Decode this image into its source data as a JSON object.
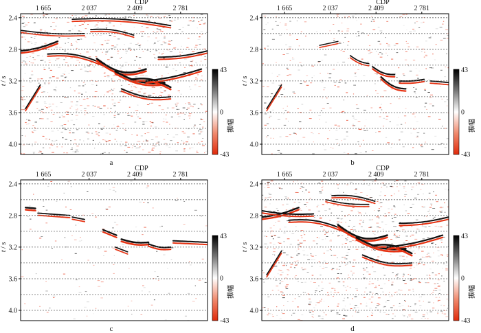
{
  "figure": {
    "colors": {
      "positive": "#111111",
      "negative": "#e63212",
      "weak": "#b8b8b8",
      "grid": "#666666",
      "frame": "#000000"
    },
    "colorbar": {
      "max_label": "43",
      "zero_label": "0",
      "min_label": "-43",
      "title": "振幅",
      "range": [
        -43,
        43
      ]
    },
    "panels": [
      {
        "id": "a",
        "label": "a",
        "density": "high",
        "chart_data": {
          "type": "heatmap",
          "title": "",
          "xlabel": "CDP",
          "ylabel_italic": "t",
          "ylabel_unit": " / s",
          "x_ticks": [
            "1 665",
            "2 037",
            "2 409",
            "2 781"
          ],
          "y_ticks": [
            "2.4",
            "2.8",
            "3.2",
            "3.6",
            "4.0"
          ],
          "x_tick_values": [
            1665,
            2037,
            2409,
            2781
          ],
          "y_tick_values": [
            2.4,
            2.8,
            3.2,
            3.6,
            4.0
          ],
          "xlim": [
            1480,
            3000
          ],
          "ylim": [
            2.35,
            4.13
          ],
          "grid_times": [
            2.4,
            2.6,
            2.8,
            3.0,
            3.2,
            3.4,
            3.6,
            3.8,
            4.0
          ],
          "value_range": [
            -43,
            43
          ]
        }
      },
      {
        "id": "b",
        "label": "b",
        "density": "medium",
        "chart_data": {
          "type": "heatmap",
          "title": "",
          "xlabel": "CDP",
          "ylabel_italic": "t",
          "ylabel_unit": " / s",
          "x_ticks": [
            "1 665",
            "2 037",
            "2 409",
            "2 781"
          ],
          "y_ticks": [
            "2.4",
            "2.8",
            "3.2",
            "3.6",
            "4.0"
          ],
          "x_tick_values": [
            1665,
            2037,
            2409,
            2781
          ],
          "y_tick_values": [
            2.4,
            2.8,
            3.2,
            3.6,
            4.0
          ],
          "xlim": [
            1480,
            3000
          ],
          "ylim": [
            2.35,
            4.13
          ],
          "grid_times": [
            2.4,
            2.6,
            2.8,
            3.0,
            3.2,
            3.4,
            3.6,
            3.8,
            4.0
          ],
          "value_range": [
            -43,
            43
          ]
        }
      },
      {
        "id": "c",
        "label": "c",
        "density": "low",
        "chart_data": {
          "type": "heatmap",
          "title": "",
          "xlabel": "CDP",
          "ylabel_italic": "t",
          "ylabel_unit": " / s",
          "x_ticks": [
            "1 665",
            "2 037",
            "2 409",
            "2 781"
          ],
          "y_ticks": [
            "2.4",
            "2.8",
            "3.2",
            "3.6",
            "4.0"
          ],
          "x_tick_values": [
            1665,
            2037,
            2409,
            2781
          ],
          "y_tick_values": [
            2.4,
            2.8,
            3.2,
            3.6,
            4.0
          ],
          "xlim": [
            1480,
            3000
          ],
          "ylim": [
            2.35,
            4.13
          ],
          "grid_times": [
            2.4,
            2.6,
            2.8,
            3.0,
            3.2,
            3.4,
            3.6,
            3.8,
            4.0
          ],
          "value_range": [
            -43,
            43
          ]
        }
      },
      {
        "id": "d",
        "label": "d",
        "density": "high",
        "chart_data": {
          "type": "heatmap",
          "title": "",
          "xlabel": "CDP",
          "ylabel_italic": "t",
          "ylabel_unit": " / s",
          "x_ticks": [
            "1 665",
            "2 037",
            "2 409",
            "2 781"
          ],
          "y_ticks": [
            "2.4",
            "2.8",
            "3.2",
            "3.6",
            "4.0"
          ],
          "x_tick_values": [
            1665,
            2037,
            2409,
            2781
          ],
          "y_tick_values": [
            2.4,
            2.8,
            3.2,
            3.6,
            4.0
          ],
          "xlim": [
            1480,
            3000
          ],
          "ylim": [
            2.35,
            4.13
          ],
          "grid_times": [
            2.4,
            2.6,
            2.8,
            3.0,
            3.2,
            3.4,
            3.6,
            3.8,
            4.0
          ],
          "value_range": [
            -43,
            43
          ]
        }
      }
    ]
  }
}
